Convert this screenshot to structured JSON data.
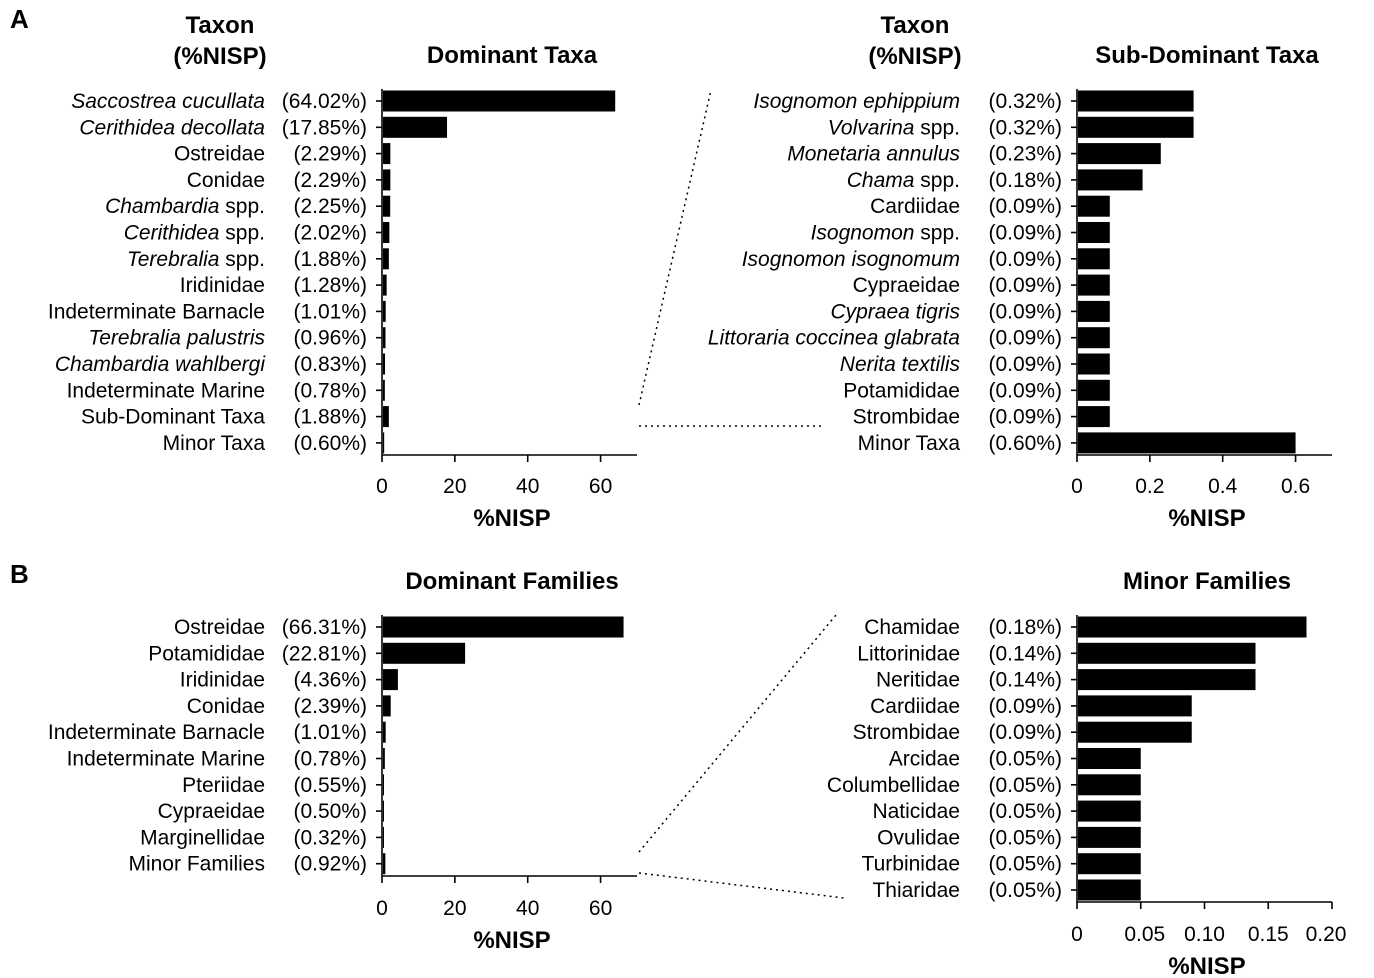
{
  "panel_labels": [
    "A",
    "B"
  ],
  "chart_data": [
    {
      "type": "bar",
      "orientation": "horizontal",
      "title": "Dominant Taxa",
      "column_header": [
        "Taxon",
        "(%NISP)"
      ],
      "xlabel": "%NISP",
      "xlim": [
        0,
        70
      ],
      "xticks": [
        0,
        20,
        40,
        60
      ],
      "xtick_labels": [
        "0",
        "20",
        "40",
        "60"
      ],
      "categories": [
        {
          "segments": [
            {
              "t": "Saccostrea cucullata",
              "it": true
            }
          ],
          "pct": "(64.02%)",
          "value": 64.02
        },
        {
          "segments": [
            {
              "t": "Cerithidea decollata",
              "it": true
            }
          ],
          "pct": "(17.85%)",
          "value": 17.85
        },
        {
          "segments": [
            {
              "t": "Ostreidae",
              "it": false
            }
          ],
          "pct": "(2.29%)",
          "value": 2.29
        },
        {
          "segments": [
            {
              "t": "Conidae",
              "it": false
            }
          ],
          "pct": "(2.29%)",
          "value": 2.29
        },
        {
          "segments": [
            {
              "t": "Chambardia",
              "it": true
            },
            {
              "t": " spp.",
              "it": false
            }
          ],
          "pct": "(2.25%)",
          "value": 2.25
        },
        {
          "segments": [
            {
              "t": "Cerithidea",
              "it": true
            },
            {
              "t": " spp.",
              "it": false
            }
          ],
          "pct": "(2.02%)",
          "value": 2.02
        },
        {
          "segments": [
            {
              "t": "Terebralia",
              "it": true
            },
            {
              "t": " spp.",
              "it": false
            }
          ],
          "pct": "(1.88%)",
          "value": 1.88
        },
        {
          "segments": [
            {
              "t": "Iridinidae",
              "it": false
            }
          ],
          "pct": "(1.28%)",
          "value": 1.28
        },
        {
          "segments": [
            {
              "t": "Indeterminate Barnacle",
              "it": false
            }
          ],
          "pct": "(1.01%)",
          "value": 1.01
        },
        {
          "segments": [
            {
              "t": "Terebralia palustris",
              "it": true
            }
          ],
          "pct": "(0.96%)",
          "value": 0.96
        },
        {
          "segments": [
            {
              "t": "Chambardia wahlbergi",
              "it": true
            }
          ],
          "pct": "(0.83%)",
          "value": 0.83
        },
        {
          "segments": [
            {
              "t": "Indeterminate Marine",
              "it": false
            }
          ],
          "pct": "(0.78%)",
          "value": 0.78
        },
        {
          "segments": [
            {
              "t": "Sub-Dominant Taxa",
              "it": false
            }
          ],
          "pct": "(1.88%)",
          "value": 1.88
        },
        {
          "segments": [
            {
              "t": "Minor Taxa",
              "it": false
            }
          ],
          "pct": "(0.60%)",
          "value": 0.6
        }
      ]
    },
    {
      "type": "bar",
      "orientation": "horizontal",
      "title": "Sub-Dominant Taxa",
      "column_header": [
        "Taxon",
        "(%NISP)"
      ],
      "xlabel": "%NISP",
      "xlim": [
        0,
        0.7
      ],
      "xticks": [
        0,
        0.2,
        0.4,
        0.6
      ],
      "xtick_labels": [
        "0",
        "0.2",
        "0.4",
        "0.6"
      ],
      "categories": [
        {
          "segments": [
            {
              "t": "Isognomon ephippium",
              "it": true
            }
          ],
          "pct": "(0.32%)",
          "value": 0.32
        },
        {
          "segments": [
            {
              "t": "Volvarina",
              "it": true
            },
            {
              "t": " spp.",
              "it": false
            }
          ],
          "pct": "(0.32%)",
          "value": 0.32
        },
        {
          "segments": [
            {
              "t": "Monetaria annulus",
              "it": true
            }
          ],
          "pct": "(0.23%)",
          "value": 0.23
        },
        {
          "segments": [
            {
              "t": "Chama",
              "it": true
            },
            {
              "t": " spp.",
              "it": false
            }
          ],
          "pct": "(0.18%)",
          "value": 0.18
        },
        {
          "segments": [
            {
              "t": "Cardiidae",
              "it": false
            }
          ],
          "pct": "(0.09%)",
          "value": 0.09
        },
        {
          "segments": [
            {
              "t": "Isognomon",
              "it": true
            },
            {
              "t": " spp.",
              "it": false
            }
          ],
          "pct": "(0.09%)",
          "value": 0.09
        },
        {
          "segments": [
            {
              "t": "Isognomon isognomum",
              "it": true
            }
          ],
          "pct": "(0.09%)",
          "value": 0.09
        },
        {
          "segments": [
            {
              "t": "Cypraeidae",
              "it": false
            }
          ],
          "pct": "(0.09%)",
          "value": 0.09
        },
        {
          "segments": [
            {
              "t": "Cypraea tigris",
              "it": true
            }
          ],
          "pct": "(0.09%)",
          "value": 0.09
        },
        {
          "segments": [
            {
              "t": "Littoraria coccinea glabrata",
              "it": true
            }
          ],
          "pct": "(0.09%)",
          "value": 0.09
        },
        {
          "segments": [
            {
              "t": "Nerita textilis",
              "it": true
            }
          ],
          "pct": "(0.09%)",
          "value": 0.09
        },
        {
          "segments": [
            {
              "t": "Potamididae",
              "it": false
            }
          ],
          "pct": "(0.09%)",
          "value": 0.09
        },
        {
          "segments": [
            {
              "t": "Strombidae",
              "it": false
            }
          ],
          "pct": "(0.09%)",
          "value": 0.09
        },
        {
          "segments": [
            {
              "t": "Minor Taxa",
              "it": false
            }
          ],
          "pct": "(0.60%)",
          "value": 0.6
        }
      ]
    },
    {
      "type": "bar",
      "orientation": "horizontal",
      "title": "Dominant Families",
      "xlabel": "%NISP",
      "xlim": [
        0,
        70
      ],
      "xticks": [
        0,
        20,
        40,
        60
      ],
      "xtick_labels": [
        "0",
        "20",
        "40",
        "60"
      ],
      "categories": [
        {
          "segments": [
            {
              "t": "Ostreidae",
              "it": false
            }
          ],
          "pct": "(66.31%)",
          "value": 66.31
        },
        {
          "segments": [
            {
              "t": "Potamididae",
              "it": false
            }
          ],
          "pct": "(22.81%)",
          "value": 22.81
        },
        {
          "segments": [
            {
              "t": "Iridinidae",
              "it": false
            }
          ],
          "pct": "(4.36%)",
          "value": 4.36
        },
        {
          "segments": [
            {
              "t": "Conidae",
              "it": false
            }
          ],
          "pct": "(2.39%)",
          "value": 2.39
        },
        {
          "segments": [
            {
              "t": "Indeterminate Barnacle",
              "it": false
            }
          ],
          "pct": "(1.01%)",
          "value": 1.01
        },
        {
          "segments": [
            {
              "t": "Indeterminate Marine",
              "it": false
            }
          ],
          "pct": "(0.78%)",
          "value": 0.78
        },
        {
          "segments": [
            {
              "t": "Pteriidae",
              "it": false
            }
          ],
          "pct": "(0.55%)",
          "value": 0.55
        },
        {
          "segments": [
            {
              "t": "Cypraeidae",
              "it": false
            }
          ],
          "pct": "(0.50%)",
          "value": 0.5
        },
        {
          "segments": [
            {
              "t": "Marginellidae",
              "it": false
            }
          ],
          "pct": "(0.32%)",
          "value": 0.32
        },
        {
          "segments": [
            {
              "t": "Minor Families",
              "it": false
            }
          ],
          "pct": "(0.92%)",
          "value": 0.92
        }
      ]
    },
    {
      "type": "bar",
      "orientation": "horizontal",
      "title": "Minor Families",
      "xlabel": "%NISP",
      "xlim": [
        0,
        0.2
      ],
      "xticks": [
        0,
        0.05,
        0.1,
        0.15,
        0.2
      ],
      "xtick_labels": [
        "0",
        "0.05",
        "0.10",
        "0.15",
        "0.20"
      ],
      "categories": [
        {
          "segments": [
            {
              "t": "Chamidae",
              "it": false
            }
          ],
          "pct": "(0.18%)",
          "value": 0.18
        },
        {
          "segments": [
            {
              "t": "Littorinidae",
              "it": false
            }
          ],
          "pct": "(0.14%)",
          "value": 0.14
        },
        {
          "segments": [
            {
              "t": "Neritidae",
              "it": false
            }
          ],
          "pct": "(0.14%)",
          "value": 0.14
        },
        {
          "segments": [
            {
              "t": "Cardiidae",
              "it": false
            }
          ],
          "pct": "(0.09%)",
          "value": 0.09
        },
        {
          "segments": [
            {
              "t": "Strombidae",
              "it": false
            }
          ],
          "pct": "(0.09%)",
          "value": 0.09
        },
        {
          "segments": [
            {
              "t": "Arcidae",
              "it": false
            }
          ],
          "pct": "(0.05%)",
          "value": 0.05
        },
        {
          "segments": [
            {
              "t": "Columbellidae",
              "it": false
            }
          ],
          "pct": "(0.05%)",
          "value": 0.05
        },
        {
          "segments": [
            {
              "t": "Naticidae",
              "it": false
            }
          ],
          "pct": "(0.05%)",
          "value": 0.05
        },
        {
          "segments": [
            {
              "t": "Ovulidae",
              "it": false
            }
          ],
          "pct": "(0.05%)",
          "value": 0.05
        },
        {
          "segments": [
            {
              "t": "Turbinidae",
              "it": false
            }
          ],
          "pct": "(0.05%)",
          "value": 0.05
        },
        {
          "segments": [
            {
              "t": "Thiaridae",
              "it": false
            }
          ],
          "pct": "(0.05%)",
          "value": 0.05
        }
      ]
    }
  ]
}
